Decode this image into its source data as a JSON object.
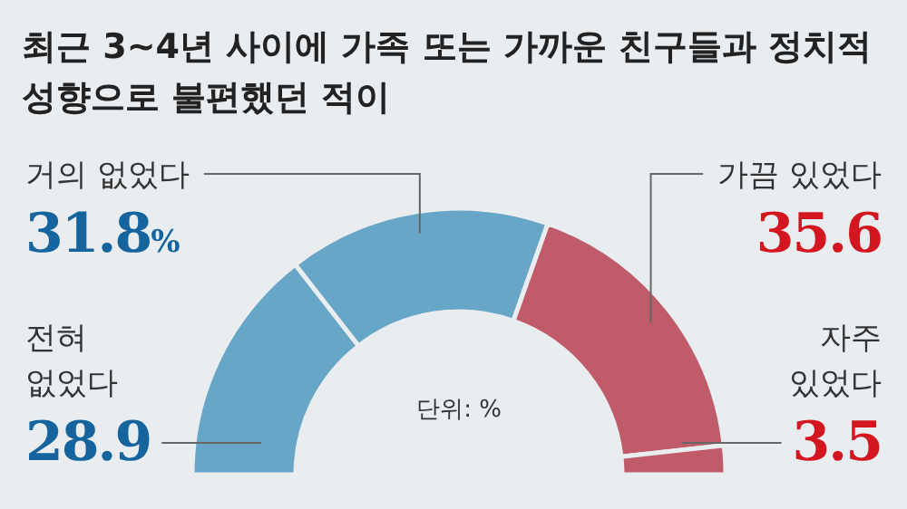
{
  "chart_data": {
    "type": "donut",
    "title": "최근 3~4년 사이에 가족 또는 가까운 친구들과 정치적 성향으로 불편했던 적이",
    "categories": [
      "전혀 없었다",
      "거의 없었다",
      "가끔 있었다",
      "자주 있었다"
    ],
    "values": [
      28.9,
      31.8,
      35.6,
      3.5
    ],
    "value_labels": [
      "28.9",
      "31.8%",
      "35.6",
      "3.5"
    ],
    "colors": [
      "#67a6c6",
      "#67a6c6",
      "#c05b69",
      "#c05b69"
    ],
    "annotations": [
      "단위: %"
    ]
  }
}
